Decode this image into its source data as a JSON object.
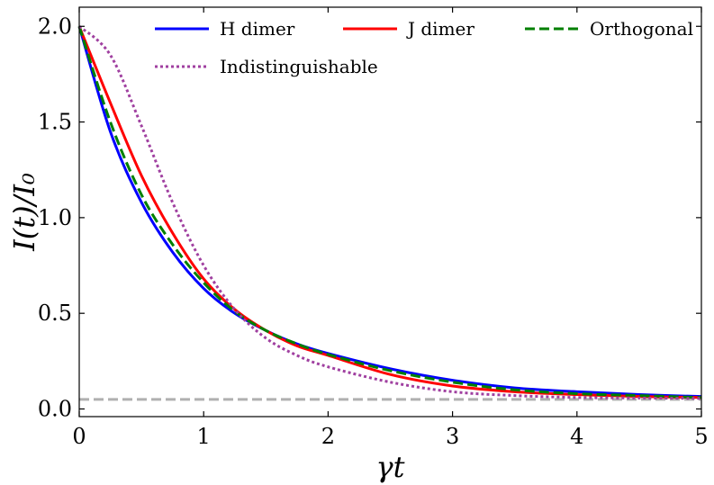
{
  "chart_data": {
    "type": "line",
    "xlabel": "γt",
    "ylabel": "I(t)/I₀",
    "xlim": [
      0,
      5
    ],
    "ylim": [
      -0.04,
      2.1
    ],
    "xticks": [
      0,
      1,
      2,
      3,
      4,
      5
    ],
    "xtick_labels": [
      "0",
      "1",
      "2",
      "3",
      "4",
      "5"
    ],
    "yticks": [
      0.0,
      0.5,
      1.0,
      1.5,
      2.0
    ],
    "ytick_labels": [
      "0.0",
      "0.5",
      "1.0",
      "1.5",
      "2.0"
    ],
    "grid": false,
    "legend_position": "top",
    "x": [
      0,
      0.25,
      0.5,
      0.75,
      1.0,
      1.25,
      1.5,
      1.75,
      2.0,
      2.5,
      3.0,
      3.5,
      4.0,
      4.5,
      5.0
    ],
    "series": [
      {
        "name": "H dimer",
        "color": "#0000ff",
        "style": "solid",
        "values": [
          2.0,
          1.45,
          1.08,
          0.82,
          0.63,
          0.5,
          0.41,
          0.34,
          0.29,
          0.21,
          0.15,
          0.11,
          0.09,
          0.075,
          0.065
        ]
      },
      {
        "name": "J dimer",
        "color": "#ff0000",
        "style": "solid",
        "values": [
          2.0,
          1.6,
          1.22,
          0.92,
          0.68,
          0.52,
          0.41,
          0.33,
          0.28,
          0.18,
          0.12,
          0.09,
          0.075,
          0.065,
          0.06
        ]
      },
      {
        "name": "Orthogonal",
        "color": "#008000",
        "style": "dashed",
        "values": [
          2.0,
          1.5,
          1.12,
          0.86,
          0.66,
          0.51,
          0.41,
          0.34,
          0.285,
          0.2,
          0.14,
          0.1,
          0.08,
          0.07,
          0.06
        ]
      },
      {
        "name": "Indistinguishable",
        "color": "#a040a0",
        "style": "dotted",
        "values": [
          2.0,
          1.85,
          1.48,
          1.08,
          0.75,
          0.52,
          0.37,
          0.28,
          0.22,
          0.14,
          0.09,
          0.07,
          0.06,
          0.057,
          0.055
        ]
      }
    ],
    "reference_lines": [
      {
        "y": 0.05,
        "color": "#b0b0b0",
        "style": "dashed"
      }
    ]
  }
}
